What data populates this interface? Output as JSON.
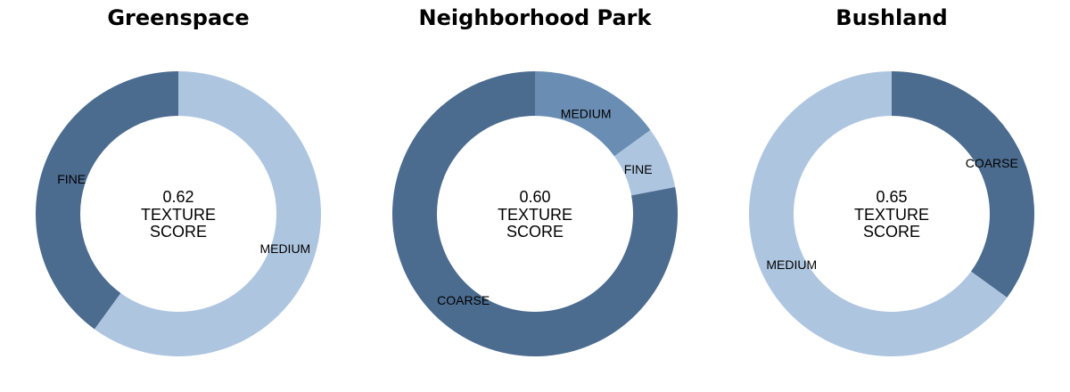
{
  "chart_data": [
    {
      "type": "pie",
      "title": "Greenspace",
      "center_value": "0.62",
      "center_label": [
        "TEXTURE",
        "SCORE"
      ],
      "slices": [
        {
          "label": "MEDIUM",
          "value": 0.6,
          "color": "#aec5e0"
        },
        {
          "label": "FINE",
          "value": 0.4,
          "color": "#4b6b8f"
        }
      ]
    },
    {
      "type": "pie",
      "title": "Neighborhood Park",
      "center_value": "0.60",
      "center_label": [
        "TEXTURE",
        "SCORE"
      ],
      "slices": [
        {
          "label": "MEDIUM",
          "value": 0.15,
          "color": "#6a8db3"
        },
        {
          "label": "FINE",
          "value": 0.07,
          "color": "#aec5e0"
        },
        {
          "label": "COARSE",
          "value": 0.78,
          "color": "#4b6b8f"
        }
      ]
    },
    {
      "type": "pie",
      "title": "Bushland",
      "center_value": "0.65",
      "center_label": [
        "TEXTURE",
        "SCORE"
      ],
      "slices": [
        {
          "label": "COARSE",
          "value": 0.35,
          "color": "#4b6b8f"
        },
        {
          "label": "MEDIUM",
          "value": 0.65,
          "color": "#aec5e0"
        }
      ]
    }
  ]
}
